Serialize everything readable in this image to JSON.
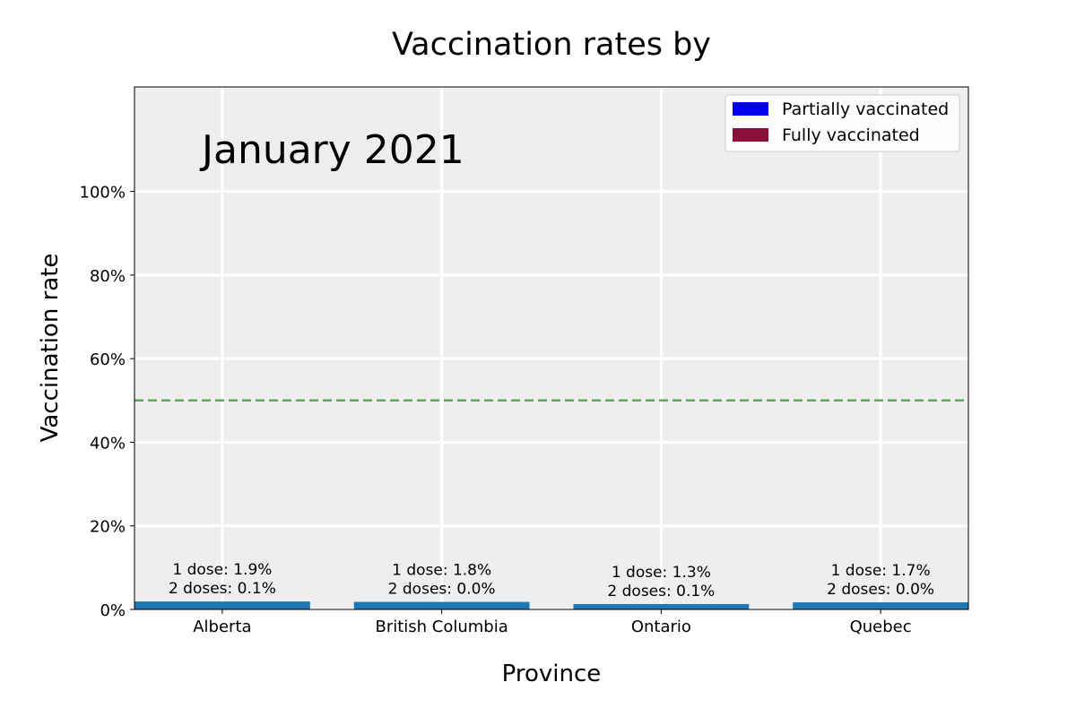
{
  "chart_data": {
    "type": "bar",
    "title": "Vaccination rates by",
    "annotation": "January 2021",
    "xlabel": "Province",
    "ylabel": "Vaccination rate",
    "categories": [
      "Alberta",
      "British Columbia",
      "Ontario",
      "Quebec"
    ],
    "series": [
      {
        "name": "Partially vaccinated",
        "values": [
          1.9,
          1.8,
          1.3,
          1.7
        ]
      },
      {
        "name": "Fully vaccinated",
        "values": [
          0.1,
          0.0,
          0.1,
          0.0
        ]
      }
    ],
    "bar_labels": [
      {
        "line1": "1 dose: 1.9%",
        "line2": "2 doses: 0.1%"
      },
      {
        "line1": "1 dose: 1.8%",
        "line2": "2 doses: 0.0%"
      },
      {
        "line1": "1 dose: 1.3%",
        "line2": "2 doses: 0.1%"
      },
      {
        "line1": "1 dose: 1.7%",
        "line2": "2 doses: 0.0%"
      }
    ],
    "yticks": [
      0,
      20,
      40,
      60,
      80,
      100
    ],
    "ytick_labels": [
      "0%",
      "20%",
      "40%",
      "60%",
      "80%",
      "100%"
    ],
    "ylim": [
      0,
      125
    ],
    "reference_line": {
      "value": 50,
      "style": "dashed",
      "color": "#5aaa5a"
    },
    "grid": true,
    "legend_position": "top-right",
    "colors": {
      "bar": "#1f77b4",
      "legend_partial": "#0000ee",
      "legend_full": "#8b1038",
      "plot_background": "#eeeeee",
      "grid": "#ffffff"
    }
  }
}
